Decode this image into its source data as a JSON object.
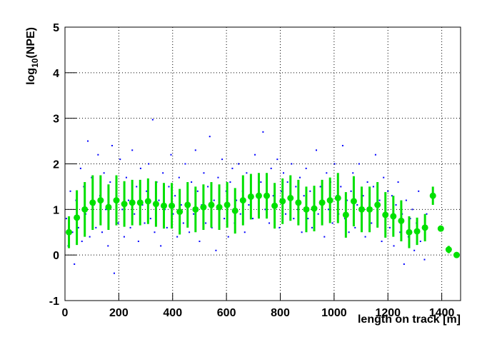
{
  "chart_data": {
    "type": "scatter-profile",
    "x_label": "length on track [m]",
    "y_label_parts": [
      "log",
      "10",
      "(NPE)"
    ],
    "xlim": [
      0,
      1470
    ],
    "ylim": [
      -1,
      5
    ],
    "xticks": [
      0,
      200,
      400,
      600,
      800,
      1000,
      1200,
      1400
    ],
    "yticks": [
      -1,
      0,
      1,
      2,
      3,
      4,
      5
    ],
    "grid": true,
    "series": [
      {
        "color": "#0000ff",
        "x": [
          5,
          12,
          20,
          28,
          35,
          41,
          50,
          58,
          63,
          70,
          77,
          85,
          92,
          99,
          108,
          115,
          123,
          130,
          138,
          145,
          152,
          160,
          168,
          175,
          183,
          190,
          198,
          205,
          213,
          220,
          228,
          236,
          243,
          250,
          258,
          266,
          273,
          281,
          288,
          296,
          303,
          311,
          318,
          326,
          333,
          341,
          349,
          356,
          364,
          371,
          379,
          386,
          394,
          402,
          409,
          417,
          424,
          432,
          440,
          447,
          455,
          462,
          470,
          478,
          485,
          493,
          500,
          508,
          516,
          523,
          531,
          538,
          546,
          554,
          561,
          569,
          576,
          584,
          592,
          599,
          607,
          614,
          622,
          630,
          637,
          645,
          652,
          660,
          668,
          675,
          683,
          690,
          698,
          706,
          713,
          721,
          728,
          736,
          744,
          751,
          759,
          766,
          774,
          782,
          789,
          797,
          804,
          812,
          820,
          827,
          835,
          842,
          850,
          858,
          865,
          873,
          880,
          888,
          896,
          903,
          911,
          918,
          926,
          934,
          941,
          949,
          956,
          964,
          972,
          979,
          987,
          994,
          1002,
          1010,
          1017,
          1025,
          1032,
          1040,
          1048,
          1055,
          1063,
          1070,
          1078,
          1086,
          1093,
          1101,
          1108,
          1116,
          1124,
          1131,
          1139,
          1146,
          1154,
          1162,
          1169,
          1177,
          1184,
          1192,
          1200,
          1207,
          1215,
          1222,
          1230,
          1238,
          1245,
          1253,
          1260,
          1268,
          1276,
          1283,
          1291,
          1298,
          1306,
          1314,
          1321,
          1329,
          1336,
          1344
        ],
        "values": [
          0.8,
          0.2,
          1.4,
          0.5,
          -0.2,
          1.2,
          0.6,
          1.9,
          0.3,
          1.5,
          0.9,
          2.5,
          0.4,
          1.7,
          1.1,
          0.6,
          2.2,
          1.3,
          0.5,
          1.8,
          1.0,
          0.2,
          1.6,
          2.4,
          -0.4,
          1.3,
          0.7,
          2.1,
          1.0,
          0.4,
          1.7,
          1.2,
          0.6,
          2.3,
          0.9,
          1.5,
          0.3,
          1.9,
          1.1,
          0.7,
          1.4,
          2.0,
          0.8,
          2.97,
          0.5,
          1.6,
          1.2,
          0.2,
          1.8,
          1.0,
          0.6,
          1.5,
          2.2,
          0.9,
          1.3,
          0.4,
          1.7,
          1.1,
          0.7,
          2.0,
          1.2,
          0.5,
          1.6,
          0.9,
          2.3,
          1.4,
          0.3,
          1.1,
          1.8,
          0.7,
          1.5,
          2.6,
          0.6,
          1.2,
          0.1,
          1.7,
          1.0,
          2.1,
          0.8,
          1.4,
          0.4,
          1.6,
          1.9,
          0.7,
          1.2,
          2.0,
          0.9,
          1.4,
          0.5,
          1.8,
          1.1,
          1.7,
          0.8,
          2.2,
          1.3,
          0.9,
          1.6,
          2.7,
          1.0,
          1.5,
          0.7,
          1.9,
          1.3,
          1.1,
          2.1,
          0.6,
          1.4,
          1.8,
          0.9,
          1.6,
          1.2,
          2.0,
          0.8,
          1.5,
          1.0,
          1.7,
          0.5,
          1.3,
          1.9,
          0.8,
          1.4,
          0.6,
          1.1,
          2.3,
          0.9,
          1.5,
          1.2,
          0.4,
          1.8,
          1.0,
          1.6,
          0.7,
          2.0,
          1.3,
          0.9,
          1.5,
          2.4,
          0.8,
          1.2,
          0.5,
          1.4,
          1.8,
          0.6,
          1.1,
          2.0,
          0.9,
          1.3,
          0.4,
          1.6,
          1.0,
          0.7,
          1.5,
          2.2,
          0.8,
          1.2,
          0.3,
          1.7,
          1.0,
          1.4,
          0.6,
          1.3,
          0.2,
          1.1,
          1.6,
          0.5,
          0.9,
          -0.2,
          1.2,
          0.4,
          0.8,
          1.0,
          0.1,
          0.7,
          1.4,
          0.3,
          0.6,
          -0.1,
          0.9
        ]
      },
      {
        "color": "#00e000",
        "x": [
          14.7,
          44.1,
          73.5,
          102.9,
          132.3,
          161.7,
          191.1,
          220.5,
          249.9,
          279.3,
          308.7,
          338.1,
          367.5,
          396.9,
          426.3,
          455.7,
          485.1,
          514.5,
          543.9,
          573.3,
          602.7,
          632.1,
          661.5,
          690.9,
          720.3,
          749.7,
          779.1,
          808.5,
          837.9,
          867.3,
          896.7,
          926.1,
          955.5,
          984.9,
          1014.3,
          1043.7,
          1073.1,
          1102.5,
          1131.9,
          1161.3,
          1190.7,
          1220.1,
          1249.5,
          1278.9,
          1308.3,
          1337.7,
          1367.1,
          1396.5,
          1425.9,
          1455.3
        ],
        "values": [
          0.5,
          0.82,
          1.0,
          1.15,
          1.2,
          1.05,
          1.2,
          1.12,
          1.15,
          1.15,
          1.18,
          1.12,
          1.08,
          1.08,
          0.95,
          1.1,
          1.0,
          1.05,
          1.1,
          1.05,
          1.1,
          0.97,
          1.2,
          1.28,
          1.3,
          1.3,
          1.08,
          1.18,
          1.25,
          1.15,
          1.0,
          1.02,
          1.15,
          1.2,
          1.25,
          0.88,
          1.18,
          1.0,
          1.0,
          1.1,
          0.88,
          0.85,
          0.75,
          0.5,
          0.52,
          0.6,
          1.3,
          0.58,
          0.12,
          0.0
        ],
        "errors": [
          0.35,
          0.6,
          0.6,
          0.6,
          0.55,
          0.5,
          0.55,
          0.5,
          0.5,
          0.5,
          0.5,
          0.5,
          0.5,
          0.5,
          0.5,
          0.5,
          0.5,
          0.5,
          0.5,
          0.5,
          0.5,
          0.5,
          0.55,
          0.5,
          0.5,
          0.5,
          0.5,
          0.5,
          0.5,
          0.5,
          0.5,
          0.5,
          0.5,
          0.5,
          0.55,
          0.5,
          0.55,
          0.5,
          0.5,
          0.5,
          0.5,
          0.45,
          0.45,
          0.35,
          0.3,
          0.3,
          0.2,
          0.05,
          0.08,
          0.02
        ]
      }
    ]
  }
}
